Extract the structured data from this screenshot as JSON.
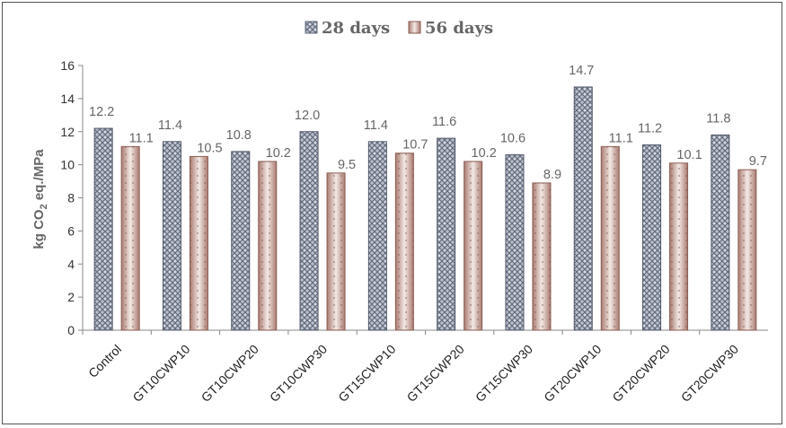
{
  "chart_data": {
    "type": "bar",
    "title": "",
    "xlabel": "",
    "ylabel": {
      "prefix": "kg CO",
      "subscript": "2",
      "suffix": " eq./MPa"
    },
    "ylim": [
      0,
      16
    ],
    "yticks": [
      0,
      2,
      4,
      6,
      8,
      10,
      12,
      14,
      16
    ],
    "grid": false,
    "legend_position": "top-center",
    "categories": [
      "Control",
      "GT10CWP10",
      "GT10CWP20",
      "GT10CWP30",
      "GT15CWP10",
      "GT15CWP20",
      "GT15CWP30",
      "GT20CWP10",
      "GT20CWP20",
      "GT20CWP30"
    ],
    "series": [
      {
        "name": "28 days",
        "values": [
          12.2,
          11.4,
          10.8,
          12.0,
          11.4,
          11.6,
          10.6,
          14.7,
          11.2,
          11.8
        ],
        "labels": [
          "12.2",
          "11.4",
          "10.8",
          "12.0",
          "11.4",
          "11.6",
          "10.6",
          "14.7",
          "11.2",
          "11.8"
        ],
        "color": "#8f97a8"
      },
      {
        "name": "56 days",
        "values": [
          11.1,
          10.5,
          10.2,
          9.5,
          10.7,
          10.2,
          8.9,
          11.1,
          10.1,
          9.7
        ],
        "labels": [
          "11.1",
          "10.5",
          "10.2",
          "9.5",
          "10.7",
          "10.2",
          "8.9",
          "11.1",
          "10.1",
          "9.7"
        ],
        "color": "#c8a49a"
      }
    ]
  }
}
